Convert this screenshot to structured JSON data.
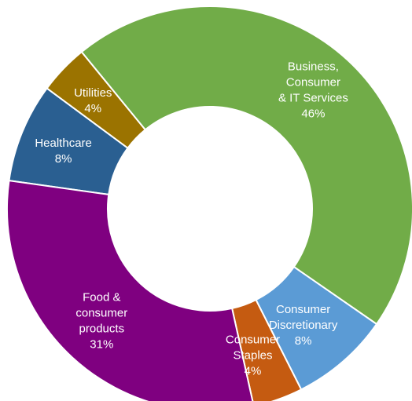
{
  "chart_data": {
    "type": "pie",
    "title": "",
    "legend": "none",
    "slices": [
      {
        "label_lines": [
          "Healthcare",
          "8%"
        ],
        "value": 8,
        "color": "#2a5f91"
      },
      {
        "label_lines": [
          "Utilities",
          "4%"
        ],
        "value": 4,
        "color": "#9b7300"
      },
      {
        "label_lines": [
          "Business,",
          "Consumer",
          "& IT Services",
          "46%"
        ],
        "value": 46,
        "color": "#71ac48"
      },
      {
        "label_lines": [
          "Consumer",
          "Discretionary",
          "8%"
        ],
        "value": 8,
        "color": "#5b9bd5"
      },
      {
        "label_lines": [
          "Consumer",
          "Staples",
          "4%"
        ],
        "value": 4,
        "color": "#c55b11"
      },
      {
        "label_lines": [
          "Food &",
          "consumer",
          "products",
          "31%"
        ],
        "value": 31,
        "color": "#7f0080"
      }
    ]
  }
}
